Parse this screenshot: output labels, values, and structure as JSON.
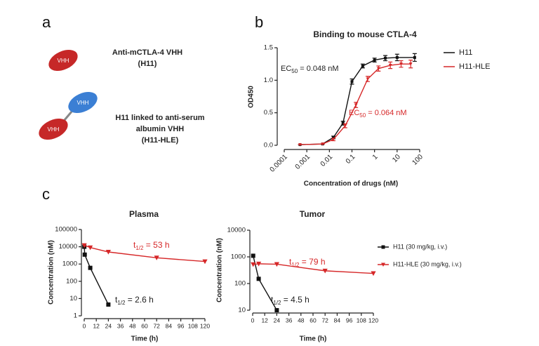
{
  "panel_labels": [
    "a",
    "b",
    "c"
  ],
  "panel_a": {
    "molecules": [
      {
        "domains": [
          "VHH"
        ],
        "lines": [
          "Anti-mCTLA-4 VHH",
          "(H11)"
        ]
      },
      {
        "domains": [
          "VHH",
          "VHH"
        ],
        "lines": [
          "H11 linked to anti-serum",
          "albumin VHH",
          "(H11-HLE)"
        ]
      }
    ]
  },
  "chart_data": [
    {
      "type": "line",
      "title": "Binding to mouse CTLA-4",
      "x_label": "Concentration of drugs (nM)",
      "y_label": "OD450",
      "xscale": "log",
      "yscale": "linear",
      "xlim": [
        0.0001,
        100
      ],
      "xticks": [
        0.0001,
        0.001,
        0.01,
        0.1,
        1,
        10,
        100
      ],
      "ylim": [
        0,
        1.5
      ],
      "yticks": [
        {
          "value": 0,
          "label": "0.0"
        },
        0.5,
        {
          "value": 1,
          "label": "1.0"
        },
        1.5
      ],
      "legend": "upper right",
      "series": [
        {
          "name": "H11",
          "color": "#111111",
          "marker": "square",
          "x": [
            0.0005,
            0.005,
            0.015,
            0.04,
            0.1,
            0.3,
            1,
            3,
            10,
            60
          ],
          "values": [
            0.01,
            0.02,
            0.12,
            0.34,
            0.98,
            1.22,
            1.31,
            1.34,
            1.35,
            1.35
          ],
          "errors": [
            0,
            0,
            0.02,
            0.03,
            0.04,
            0.03,
            0.03,
            0.04,
            0.05,
            0.06
          ]
        },
        {
          "name": "H11-HLE",
          "color": "#d62728",
          "marker": "triangle-down",
          "x": [
            0.0005,
            0.005,
            0.015,
            0.05,
            0.15,
            0.5,
            1.5,
            5,
            15,
            40
          ],
          "values": [
            0.01,
            0.02,
            0.09,
            0.3,
            0.62,
            1.02,
            1.18,
            1.23,
            1.25,
            1.25
          ],
          "errors": [
            0,
            0,
            0.02,
            0.03,
            0.04,
            0.04,
            0.04,
            0.05,
            0.05,
            0.06
          ]
        }
      ],
      "annotations": [
        {
          "text": "EC",
          "sub": "50",
          "rest": " = 0.048 nM",
          "color": "#222222"
        },
        {
          "text": "EC",
          "sub": "50",
          "rest": " = 0.064 nM",
          "color": "#d62728"
        }
      ]
    },
    {
      "type": "line",
      "title": "Plasma",
      "x_label": "Time (h)",
      "y_label": "Concentration (nM)",
      "xscale": "linear",
      "yscale": "log",
      "xlim": [
        0,
        120
      ],
      "xticks": [
        0,
        12,
        24,
        36,
        48,
        60,
        72,
        84,
        96,
        108,
        120
      ],
      "ylim": [
        1,
        100000
      ],
      "yticks": [
        1,
        10,
        100,
        1000,
        10000,
        100000
      ],
      "series": [
        {
          "color": "#111111",
          "marker": "square",
          "x": [
            0.08,
            0.5,
            6,
            24
          ],
          "values": [
            10000,
            3500,
            600,
            4.5
          ]
        },
        {
          "color": "#d62728",
          "marker": "triangle-down",
          "x": [
            0.08,
            6,
            24,
            72,
            120
          ],
          "values": [
            12000,
            9000,
            5000,
            2300,
            1400
          ]
        }
      ],
      "annotations": [
        {
          "text": "t",
          "sub": "1/2",
          "rest": " = 53 h",
          "color": "#d62728"
        },
        {
          "text": "t",
          "sub": "1/2",
          "rest": " = 2.6 h",
          "color": "#222222"
        }
      ]
    },
    {
      "type": "line",
      "title": "Tumor",
      "x_label": "Time (h)",
      "y_label": "Concentration (nM)",
      "xscale": "linear",
      "yscale": "log",
      "xlim": [
        0,
        120
      ],
      "xticks": [
        0,
        12,
        24,
        36,
        48,
        60,
        72,
        84,
        96,
        108,
        120
      ],
      "ylim": [
        10,
        10000
      ],
      "yticks": [
        10,
        100,
        1000,
        10000
      ],
      "legend": "right",
      "series": [
        {
          "name": "H11 (30 mg/kg, i.v.)",
          "color": "#111111",
          "marker": "square",
          "x": [
            0.5,
            6,
            24
          ],
          "values": [
            1100,
            150,
            10
          ]
        },
        {
          "name": "H11-HLE (30 mg/kg, i.v.)",
          "color": "#d62728",
          "marker": "triangle-down",
          "x": [
            0.5,
            6,
            24,
            72,
            120
          ],
          "values": [
            520,
            550,
            530,
            300,
            240
          ]
        }
      ],
      "annotations": [
        {
          "text": "t",
          "sub": "1/2",
          "rest": " = 79 h",
          "color": "#d62728"
        },
        {
          "text": "t",
          "sub": "1/2",
          "rest": " = 4.5 h",
          "color": "#222222"
        }
      ]
    }
  ]
}
